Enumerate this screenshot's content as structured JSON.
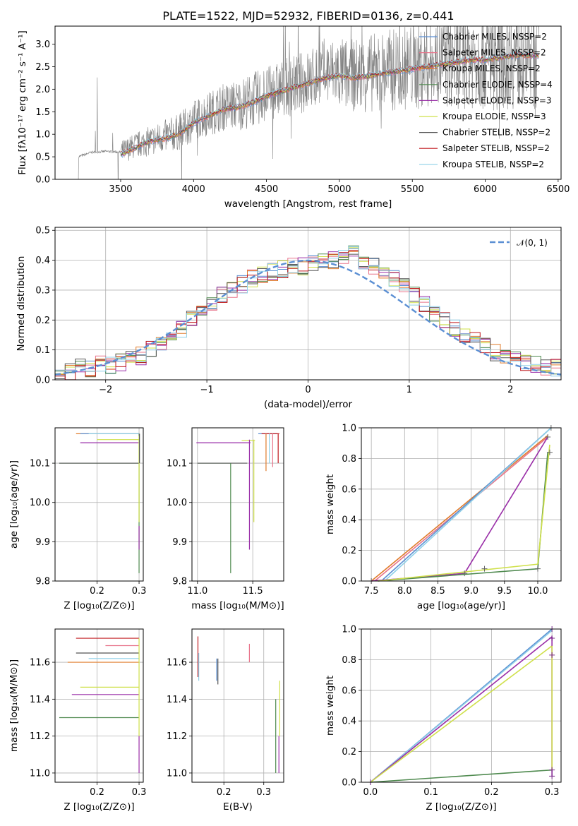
{
  "chart_data": [
    {
      "panel": "spectrum",
      "type": "line",
      "title": "PLATE=1522, MJD=52932, FIBERID=0136, z=0.441",
      "xlabel": "wavelength [Angstrom, rest frame]",
      "ylabel": "Flux [fλ10⁻¹⁷ erg cm⁻² s⁻¹ A⁻¹]",
      "xlim": [
        3050,
        6520
      ],
      "ylim": [
        0,
        3.4
      ],
      "xticks": [
        "3500",
        "4000",
        "4500",
        "5000",
        "5500",
        "6000",
        "6500"
      ],
      "yticks": [
        "0.0",
        "0.5",
        "1.0",
        "1.5",
        "2.0",
        "2.5",
        "3.0"
      ],
      "legend_position": "top-right",
      "series": [
        {
          "name": "Chabrier MILES, NSSP=2",
          "color": "#5b8fd3"
        },
        {
          "name": "Salpeter MILES, NSSP=2",
          "color": "#e8738a"
        },
        {
          "name": "Kroupa MILES, NSSP=2",
          "color": "#e07b2a"
        },
        {
          "name": "Chabrier ELODIE, NSSP=4",
          "color": "#4f8a4f"
        },
        {
          "name": "Salpeter ELODIE, NSSP=3",
          "color": "#9a2fa8"
        },
        {
          "name": "Kroupa ELODIE, NSSP=3",
          "color": "#cfe04a"
        },
        {
          "name": "Chabrier STELIB, NSSP=2",
          "color": "#555555"
        },
        {
          "name": "Salpeter STELIB, NSSP=2",
          "color": "#c0191f"
        },
        {
          "name": "Kroupa STELIB, NSSP=2",
          "color": "#8fd0e8"
        }
      ],
      "data_color": "#808080",
      "data_x": [
        3210,
        3300,
        3400,
        3500,
        3600,
        3700,
        3800,
        3900,
        4000,
        4100,
        4200,
        4300,
        4400,
        4500,
        4600,
        4700,
        4800,
        4900,
        5000,
        5100,
        5200,
        5300,
        5400,
        5500,
        5600,
        5700,
        5800,
        5900,
        6000,
        6100,
        6200,
        6300,
        6370
      ],
      "data_y": [
        0.5,
        0.6,
        0.62,
        0.6,
        0.75,
        0.85,
        0.95,
        1.05,
        1.3,
        1.45,
        1.6,
        1.65,
        1.75,
        1.9,
        2.0,
        2.1,
        2.2,
        2.4,
        2.35,
        2.3,
        2.35,
        2.4,
        2.45,
        2.5,
        2.55,
        2.6,
        2.65,
        2.7,
        2.7,
        2.75,
        2.8,
        2.8,
        2.8
      ],
      "model_x": [
        3500,
        3600,
        3700,
        3800,
        3900,
        4000,
        4100,
        4200,
        4300,
        4400,
        4500,
        4600,
        4700,
        4800,
        4900,
        5000,
        5100,
        5200,
        5300,
        5400,
        5500,
        5600,
        5700,
        5800,
        5900,
        6000,
        6100,
        6200,
        6300,
        6370
      ],
      "model_y": [
        0.55,
        0.7,
        0.85,
        0.9,
        1.0,
        1.25,
        1.4,
        1.55,
        1.6,
        1.7,
        1.85,
        1.95,
        2.05,
        2.15,
        2.25,
        2.3,
        2.25,
        2.3,
        2.35,
        2.4,
        2.45,
        2.5,
        2.55,
        2.6,
        2.65,
        2.65,
        2.7,
        2.75,
        2.75,
        2.75
      ]
    },
    {
      "panel": "residuals",
      "type": "line",
      "xlabel": "(data-model)/error",
      "ylabel": "Normed distribution",
      "xlim": [
        -2.5,
        2.5
      ],
      "ylim": [
        0,
        0.51
      ],
      "xticks": [
        "−2",
        "−1",
        "0",
        "1",
        "2"
      ],
      "yticks": [
        "0.0",
        "0.1",
        "0.2",
        "0.3",
        "0.4",
        "0.5"
      ],
      "grid": true,
      "legend_position": "top-right",
      "legend": "𝒩(0, 1)",
      "normal_curve": {
        "mean": 0,
        "sigma": 1,
        "color": "#5b8fd3"
      },
      "bins": [
        -2.5,
        -2.4,
        -2.3,
        -2.2,
        -2.1,
        -2.0,
        -1.9,
        -1.8,
        -1.7,
        -1.6,
        -1.5,
        -1.4,
        -1.3,
        -1.2,
        -1.1,
        -1.0,
        -0.9,
        -0.8,
        -0.7,
        -0.6,
        -0.5,
        -0.4,
        -0.3,
        -0.2,
        -0.1,
        0.0,
        0.1,
        0.2,
        0.3,
        0.4,
        0.5,
        0.6,
        0.7,
        0.8,
        0.9,
        1.0,
        1.1,
        1.2,
        1.3,
        1.4,
        1.5,
        1.6,
        1.7,
        1.8,
        1.9,
        2.0,
        2.1,
        2.2,
        2.3,
        2.4,
        2.5
      ],
      "hist_base": [
        0.02,
        0.03,
        0.04,
        0.04,
        0.05,
        0.05,
        0.06,
        0.07,
        0.08,
        0.1,
        0.12,
        0.14,
        0.17,
        0.2,
        0.22,
        0.25,
        0.28,
        0.3,
        0.32,
        0.34,
        0.35,
        0.36,
        0.37,
        0.38,
        0.38,
        0.39,
        0.4,
        0.4,
        0.41,
        0.42,
        0.4,
        0.38,
        0.36,
        0.34,
        0.31,
        0.28,
        0.25,
        0.22,
        0.2,
        0.17,
        0.15,
        0.13,
        0.11,
        0.09,
        0.08,
        0.07,
        0.06,
        0.05,
        0.04,
        0.04
      ]
    },
    {
      "panel": "age-vs-Z",
      "type": "line",
      "xlabel": "Z [log₁₀(Z/Z⊙)]",
      "ylabel": "age  [log₁₀(age/yr)]",
      "xlim": [
        0.1,
        0.31
      ],
      "ylim": [
        9.8,
        10.19
      ],
      "xticks": [
        "0.2",
        "0.3"
      ],
      "yticks": [
        "9.8",
        "9.9",
        "10.0",
        "10.1"
      ],
      "grid": true
    },
    {
      "panel": "age-vs-mass",
      "type": "line",
      "xlabel": "mass [log₁₀(M/M⊙)]",
      "xlim": [
        10.95,
        11.78
      ],
      "ylim": [
        9.8,
        10.19
      ],
      "xticks": [
        "11.0",
        "11.5"
      ],
      "yticks": [
        "9.8",
        "9.9",
        "10.0",
        "10.1"
      ],
      "grid": true
    },
    {
      "panel": "mass-weight-vs-age",
      "type": "line",
      "xlabel": "age  [log₁₀(age/yr)]",
      "ylabel": "mass weight",
      "xlim": [
        7.35,
        10.35
      ],
      "ylim": [
        0,
        1.0
      ],
      "xticks": [
        "7.5",
        "8.0",
        "8.5",
        "9.0",
        "9.5",
        "10.0"
      ],
      "yticks": [
        "0.0",
        "0.2",
        "0.4",
        "0.6",
        "0.8",
        "1.0"
      ],
      "grid": true
    },
    {
      "panel": "mass-vs-Z",
      "type": "line",
      "xlabel": "Z [log₁₀(Z/Z⊙)]",
      "ylabel": "mass [log₁₀(M/M⊙)]",
      "xlim": [
        0.1,
        0.31
      ],
      "ylim": [
        10.95,
        11.78
      ],
      "xticks": [
        "0.2",
        "0.3"
      ],
      "yticks": [
        "11.0",
        "11.2",
        "11.4",
        "11.6"
      ],
      "grid": true
    },
    {
      "panel": "mass-vs-EBV",
      "type": "line",
      "xlabel": "E(B-V)",
      "xlim": [
        0.12,
        0.35
      ],
      "ylim": [
        10.95,
        11.78
      ],
      "xticks": [
        "0.2",
        "0.3"
      ],
      "yticks": [
        "11.0",
        "11.2",
        "11.4",
        "11.6"
      ],
      "grid": true
    },
    {
      "panel": "mass-weight-vs-Z",
      "type": "line",
      "xlabel": "Z [log₁₀(Z/Z⊙)]",
      "ylabel": "mass weight",
      "xlim": [
        -0.015,
        0.315
      ],
      "ylim": [
        0,
        1.0
      ],
      "xticks": [
        "0.0",
        "0.1",
        "0.2",
        "0.3"
      ],
      "yticks": [
        "0.0",
        "0.2",
        "0.4",
        "0.6",
        "0.8",
        "1.0"
      ],
      "grid": true
    }
  ]
}
